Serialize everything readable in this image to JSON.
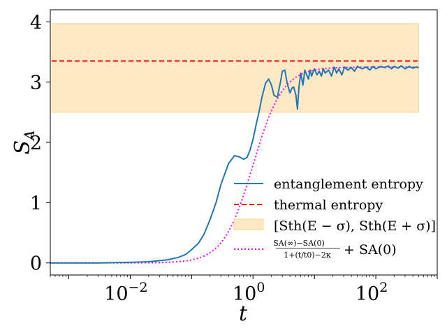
{
  "chart_data": {
    "type": "line",
    "xscale": "log",
    "xlim": [
      0.0005,
      1000
    ],
    "ylim": [
      -0.2,
      4.2
    ],
    "xlabel": "t",
    "ylabel_main": "S",
    "ylabel_sub": "A",
    "yticks": [
      0,
      1,
      2,
      3,
      4
    ],
    "xticks": [
      {
        "value": 0.01,
        "base": "10",
        "exp": "−2"
      },
      {
        "value": 1,
        "base": "10",
        "exp": "0"
      },
      {
        "value": 100,
        "base": "10",
        "exp": "2"
      }
    ],
    "thermal_entropy": 3.35,
    "band": {
      "low": 2.5,
      "high": 3.97
    },
    "fit": {
      "S_inf": 3.25,
      "S0": 0.0,
      "t0": 1.0,
      "kappa": 0.9
    },
    "entanglement_entropy": {
      "name": "entanglement entropy",
      "t": [
        0.0005,
        0.001,
        0.003,
        0.01,
        0.02,
        0.04,
        0.06,
        0.08,
        0.1,
        0.13,
        0.16,
        0.2,
        0.25,
        0.3,
        0.4,
        0.5,
        0.6,
        0.7,
        0.8,
        0.9,
        1.0,
        1.1,
        1.25,
        1.4,
        1.6,
        1.8,
        2.0,
        2.2,
        2.5,
        2.8,
        3.0,
        3.3,
        3.6,
        4.0,
        4.3,
        4.6,
        5.0,
        5.3,
        5.6,
        6.0,
        6.5,
        7.0,
        7.5,
        8.0,
        8.5,
        9.0,
        10,
        11,
        12,
        13,
        14,
        15,
        17,
        19,
        21,
        23,
        25,
        28,
        31,
        35,
        40,
        45,
        50,
        60,
        70,
        80,
        90,
        100,
        120,
        140,
        160,
        180,
        200,
        230,
        260,
        300,
        350,
        400,
        450,
        500
      ],
      "S": [
        0.0,
        0.0,
        0.0,
        0.01,
        0.02,
        0.05,
        0.09,
        0.14,
        0.22,
        0.33,
        0.48,
        0.72,
        1.0,
        1.3,
        1.65,
        1.78,
        1.76,
        1.72,
        1.75,
        1.88,
        2.05,
        2.25,
        2.5,
        2.75,
        2.98,
        3.05,
        2.95,
        2.78,
        2.75,
        3.0,
        3.18,
        3.2,
        2.98,
        2.82,
        2.9,
        2.92,
        2.78,
        2.55,
        2.92,
        3.15,
        2.95,
        3.2,
        3.12,
        3.05,
        3.2,
        3.1,
        3.22,
        3.12,
        3.18,
        3.1,
        3.22,
        3.15,
        3.2,
        3.1,
        3.25,
        3.15,
        3.22,
        3.12,
        3.25,
        3.2,
        3.24,
        3.18,
        3.26,
        3.22,
        3.25,
        3.2,
        3.26,
        3.22,
        3.26,
        3.24,
        3.27,
        3.22,
        3.26,
        3.23,
        3.27,
        3.22,
        3.26,
        3.23,
        3.25,
        3.24
      ]
    },
    "legend": {
      "position": "lower-right",
      "entries": {
        "entanglement": "entanglement entropy",
        "thermal": "thermal entropy",
        "band": "[Sth(E − σ), Sth(E + σ)]",
        "fit_num": "SA(∞)−SA(0)",
        "fit_den": "1+(t/t0)−2κ",
        "fit_tail": "+ SA(0)"
      }
    },
    "colors": {
      "entanglement": "#1f77b4",
      "thermal": "#ff0000",
      "band": "#ffe8c4",
      "band_edge": "#ffd38f",
      "fit": "#ff00ff"
    }
  }
}
